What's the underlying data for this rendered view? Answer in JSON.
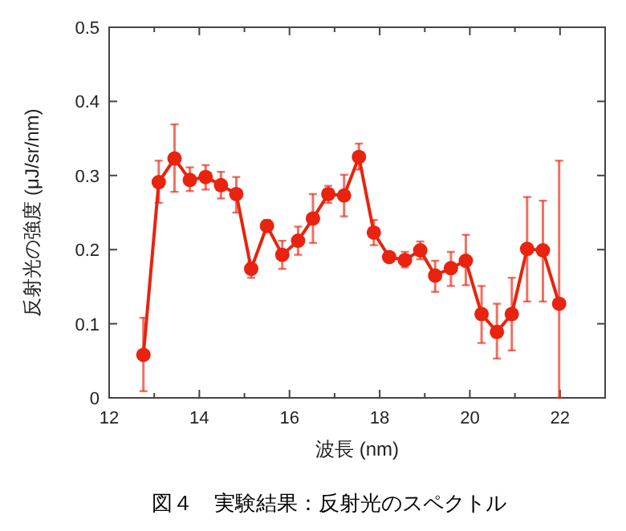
{
  "chart_data": {
    "type": "line",
    "title": "図４　実験結果：反射光のスペクトル",
    "xlabel": "波長 (nm)",
    "ylabel": "反射光の強度 (μJ/sr/nm)",
    "xlim": [
      12,
      23
    ],
    "ylim": [
      0,
      0.5
    ],
    "xticks": [
      12,
      {
        "value": 13,
        "label": null
      },
      14,
      {
        "value": 15,
        "label": null
      },
      16,
      {
        "value": 17,
        "label": null
      },
      18,
      {
        "value": 19,
        "label": null
      },
      20,
      {
        "value": 21,
        "label": null
      },
      22
    ],
    "yticks": [
      0,
      0.1,
      0.2,
      0.3,
      0.4,
      0.5
    ],
    "marker": "circle",
    "series": [
      {
        "color": "#e8230f",
        "x": [
          12.76,
          13.1,
          13.45,
          13.79,
          14.14,
          14.48,
          14.82,
          15.15,
          15.5,
          15.84,
          16.19,
          16.52,
          16.86,
          17.21,
          17.54,
          17.87,
          18.21,
          18.56,
          18.9,
          19.23,
          19.58,
          19.91,
          20.26,
          20.6,
          20.93,
          21.27,
          21.62,
          21.98
        ],
        "values": [
          0.058,
          0.291,
          0.323,
          0.294,
          0.298,
          0.287,
          0.275,
          0.174,
          0.232,
          0.193,
          0.212,
          0.242,
          0.275,
          0.273,
          0.325,
          0.223,
          0.19,
          0.186,
          0.199,
          0.165,
          0.175,
          0.185,
          0.113,
          0.089,
          0.113,
          0.201,
          0.199,
          0.127
        ],
        "errors": [
          [
            0.009,
            0.108
          ],
          [
            0.263,
            0.32
          ],
          [
            0.278,
            0.369
          ],
          [
            0.279,
            0.311
          ],
          [
            0.281,
            0.314
          ],
          [
            0.269,
            0.305
          ],
          [
            0.25,
            0.298
          ],
          [
            0.162,
            0.183
          ],
          [
            0.224,
            0.24
          ],
          [
            0.174,
            0.212
          ],
          [
            0.193,
            0.231
          ],
          [
            0.209,
            0.275
          ],
          [
            0.263,
            0.286
          ],
          [
            0.245,
            0.301
          ],
          [
            0.308,
            0.343
          ],
          [
            0.206,
            0.24
          ],
          [
            0.185,
            0.195
          ],
          [
            0.176,
            0.197
          ],
          [
            0.187,
            0.211
          ],
          [
            0.143,
            0.185
          ],
          [
            0.151,
            0.197
          ],
          [
            0.152,
            0.22
          ],
          [
            0.074,
            0.151
          ],
          [
            0.053,
            0.127
          ],
          [
            0.064,
            0.162
          ],
          [
            0.13,
            0.271
          ],
          [
            0.13,
            0.266
          ],
          [
            0.0,
            0.32
          ]
        ]
      }
    ]
  }
}
